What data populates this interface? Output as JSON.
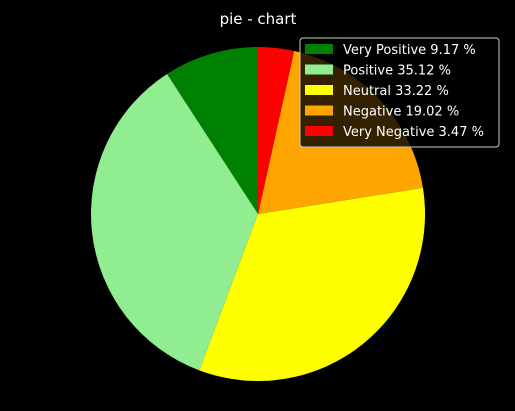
{
  "chart_data": {
    "type": "pie",
    "title": "pie - chart",
    "start_angle_deg": 90,
    "direction": "counterclockwise",
    "legend_position": "top-right",
    "slices": [
      {
        "label": "Very Positive 9.17 %",
        "value": 9.17,
        "color": "#008000"
      },
      {
        "label": "Positive 35.12 %",
        "value": 35.12,
        "color": "#90ee90"
      },
      {
        "label": "Neutral 33.22 %",
        "value": 33.22,
        "color": "#ffff00"
      },
      {
        "label": "Negative 19.02 %",
        "value": 19.02,
        "color": "#ffa500"
      },
      {
        "label": "Very Negative 3.47 %",
        "value": 3.47,
        "color": "#ff0000"
      }
    ]
  },
  "colors": {
    "background": "#000000",
    "text": "#ffffff",
    "legend_background": "#000000",
    "legend_border": "#cccccc"
  }
}
